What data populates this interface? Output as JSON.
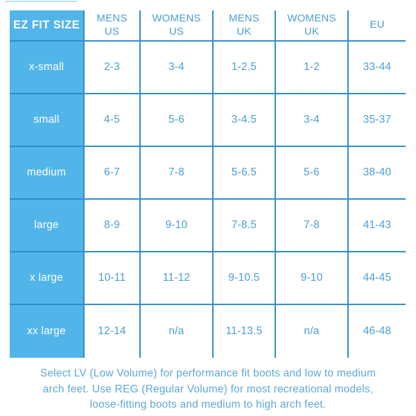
{
  "colors": {
    "blue_fill": "#51b5e9",
    "grid_line": "#2f8dc8",
    "cell_text": "#4a9fd2",
    "footer_text": "#5fa8d6",
    "label_text_on_blue": "#ffffff"
  },
  "table": {
    "corner_label": "EZ FIT SIZE",
    "column_headers": [
      "MENS\nUS",
      "WOMENS\nUS",
      "MENS\nUK",
      "WOMENS\nUK",
      "EU"
    ],
    "rows": [
      {
        "label": "x-small",
        "values": [
          "2-3",
          "3-4",
          "1-2.5",
          "1-2",
          "33-44"
        ]
      },
      {
        "label": "small",
        "values": [
          "4-5",
          "5-6",
          "3-4.5",
          "3-4",
          "35-37"
        ]
      },
      {
        "label": "medium",
        "values": [
          "6-7",
          "7-8",
          "5-6.5",
          "5-6",
          "38-40"
        ]
      },
      {
        "label": "large",
        "values": [
          "8-9",
          "9-10",
          "7-8.5",
          "7-8",
          "41-43"
        ]
      },
      {
        "label": "x large",
        "values": [
          "10-11",
          "11-12",
          "9-10.5",
          "9-10",
          "44-45"
        ]
      },
      {
        "label": "xx large",
        "values": [
          "12-14",
          "n/a",
          "11-13.5",
          "n/a",
          "46-48"
        ]
      }
    ]
  },
  "footer": {
    "note": "Select LV (Low Volume) for performance fit boots and low to medium\narch feet. Use REG (Regular Volume) for most recreational models,\nloose-fitting boots and medium to high arch feet."
  },
  "chart_data": {
    "type": "table",
    "title": "EZ FIT SIZE",
    "columns": [
      "EZ FIT SIZE",
      "MENS US",
      "WOMENS US",
      "MENS UK",
      "WOMENS UK",
      "EU"
    ],
    "rows": [
      [
        "x-small",
        "2-3",
        "3-4",
        "1-2.5",
        "1-2",
        "33-44"
      ],
      [
        "small",
        "4-5",
        "5-6",
        "3-4.5",
        "3-4",
        "35-37"
      ],
      [
        "medium",
        "6-7",
        "7-8",
        "5-6.5",
        "5-6",
        "38-40"
      ],
      [
        "large",
        "8-9",
        "9-10",
        "7-8.5",
        "7-8",
        "41-43"
      ],
      [
        "x large",
        "10-11",
        "11-12",
        "9-10.5",
        "9-10",
        "44-45"
      ],
      [
        "xx large",
        "12-14",
        "n/a",
        "11-13.5",
        "n/a",
        "46-48"
      ]
    ],
    "note": "Select LV (Low Volume) for performance fit boots and low to medium arch feet. Use REG (Regular Volume) for most recreational models, loose-fitting boots and medium to high arch feet."
  }
}
